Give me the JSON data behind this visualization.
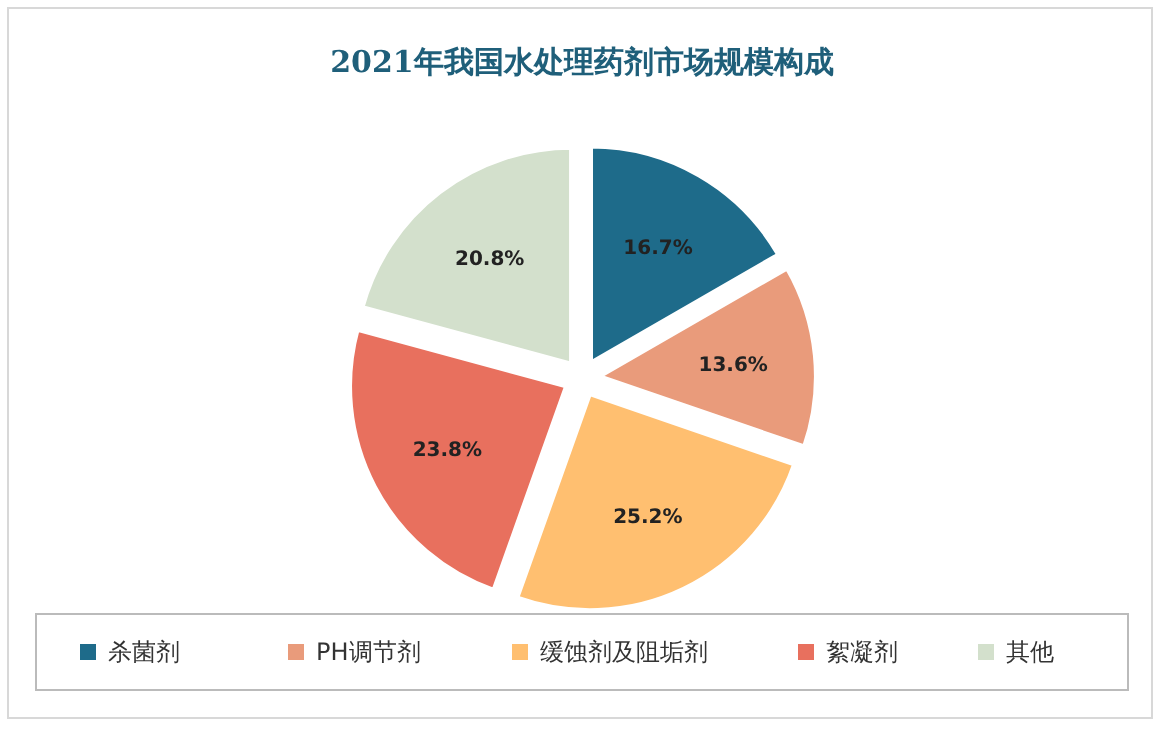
{
  "chart_data": {
    "type": "pie",
    "title": "2021年我国水处理药剂市场规模构成",
    "categories": [
      "杀菌剂",
      "PH调节剂",
      "缓蚀剂及阻垢剂",
      "絮凝剂",
      "其他"
    ],
    "values": [
      16.7,
      13.6,
      25.2,
      23.8,
      20.8
    ],
    "colors": [
      "#1e6b8a",
      "#e99b7b",
      "#ffbf70",
      "#e8705e",
      "#d3e0cc"
    ],
    "value_labels": [
      "16.7%",
      "13.6%",
      "25.2%",
      "23.8%",
      "20.8%"
    ],
    "legend": "bottom"
  }
}
